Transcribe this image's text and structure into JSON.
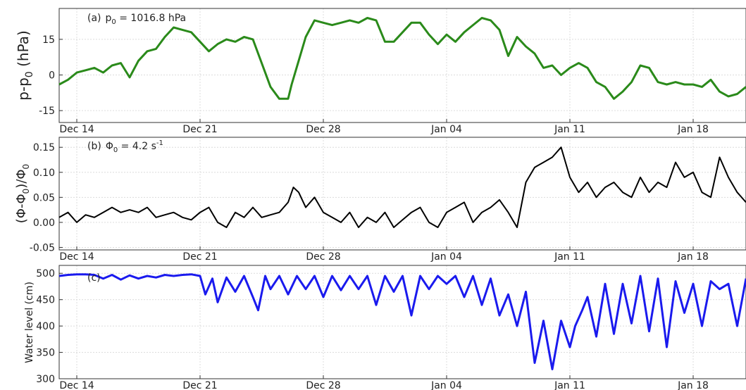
{
  "chart_data": [
    {
      "type": "line",
      "panel_label": "(a)",
      "annotation_text": "p",
      "annotation_sub": "0",
      "annotation_value": " = 1016.8 hPa",
      "ylabel": "p-p",
      "ylabel_sub": "0",
      "ylabel_unit": " (hPa)",
      "ylim": [
        -20,
        28
      ],
      "yticks": [
        -15,
        0,
        15
      ],
      "ytick_labels": [
        "-15",
        "0",
        "15"
      ],
      "xlim": [
        -1,
        38
      ],
      "xticks": [
        0,
        7,
        14,
        21,
        28,
        35
      ],
      "xtick_labels": [
        "Dec 14",
        "Dec 21",
        "Dec 28",
        "Jan 04",
        "Jan 11",
        "Jan 18"
      ],
      "grid": true,
      "color": "#2a8a1a",
      "x": [
        -1,
        -0.5,
        0,
        0.5,
        1,
        1.5,
        2,
        2.5,
        3,
        3.5,
        4,
        4.5,
        5,
        5.5,
        6,
        6.5,
        7,
        7.5,
        8,
        8.5,
        9,
        9.5,
        10,
        10.5,
        11,
        11.5,
        12,
        12.2,
        12.6,
        13,
        13.5,
        14,
        14.5,
        15,
        15.5,
        16,
        16.5,
        17,
        17.5,
        18,
        18.5,
        19,
        19.5,
        20,
        20.5,
        21,
        21.5,
        22,
        22.5,
        23,
        23.5,
        24,
        24.5,
        25,
        25.5,
        26,
        26.5,
        27,
        27.5,
        28,
        28.5,
        29,
        29.5,
        30,
        30.5,
        31,
        31.5,
        32,
        32.5,
        33,
        33.5,
        34,
        34.5,
        35,
        35.5,
        36,
        36.5,
        37,
        37.5,
        38
      ],
      "values": [
        -4,
        -2,
        1,
        2,
        3,
        1,
        4,
        5,
        -1,
        6,
        10,
        11,
        16,
        20,
        19,
        18,
        14,
        10,
        13,
        15,
        14,
        16,
        15,
        5,
        -5,
        -10,
        -10,
        -4,
        6,
        16,
        23,
        22,
        21,
        22,
        23,
        22,
        24,
        23,
        14,
        14,
        18,
        22,
        22,
        17,
        13,
        17,
        14,
        18,
        21,
        24,
        23,
        19,
        8,
        16,
        12,
        9,
        3,
        4,
        0,
        3,
        5,
        3,
        -3,
        -5,
        -10,
        -7,
        -3,
        4,
        3,
        -3,
        -4,
        -3,
        -4,
        -4,
        -5,
        -2,
        -7,
        -9,
        -8,
        -5
      ]
    },
    {
      "type": "line",
      "panel_label": "(b)",
      "annotation_text": "Φ",
      "annotation_sub": "0",
      "annotation_value": " = 4.2 s",
      "annotation_sup": "-1",
      "ylabel": "(Φ-Φ",
      "ylabel_sub": "0",
      "ylabel_mid": ")/Φ",
      "ylabel_sub2": "0",
      "ylim": [
        -0.055,
        0.17
      ],
      "yticks": [
        -0.05,
        0,
        0.05,
        0.1,
        0.15
      ],
      "ytick_labels": [
        "-0.05",
        "0.00",
        "0.05",
        "0.10",
        "0.15"
      ],
      "xlim": [
        -1,
        38
      ],
      "xticks": [
        0,
        7,
        14,
        21,
        28,
        35
      ],
      "xtick_labels": [
        "Dec 14",
        "Dec 21",
        "Dec 28",
        "Jan 04",
        "Jan 11",
        "Jan 18"
      ],
      "grid": true,
      "color": "#000000",
      "x": [
        -1,
        -0.5,
        0,
        0.5,
        1,
        1.5,
        2,
        2.5,
        3,
        3.5,
        4,
        4.5,
        5,
        5.5,
        6,
        6.5,
        7,
        7.5,
        8,
        8.5,
        9,
        9.5,
        10,
        10.5,
        11,
        11.5,
        12,
        12.3,
        12.6,
        13,
        13.5,
        14,
        14.5,
        15,
        15.5,
        16,
        16.5,
        17,
        17.5,
        18,
        18.5,
        19,
        19.5,
        20,
        20.5,
        21,
        21.5,
        22,
        22.5,
        23,
        23.5,
        24,
        24.5,
        25,
        25.5,
        26,
        26.5,
        27,
        27.5,
        28,
        28.5,
        29,
        29.5,
        30,
        30.5,
        31,
        31.5,
        32,
        32.5,
        33,
        33.5,
        34,
        34.5,
        35,
        35.5,
        36,
        36.5,
        37,
        37.5,
        38
      ],
      "values": [
        0.01,
        0.02,
        0.0,
        0.015,
        0.01,
        0.02,
        0.03,
        0.02,
        0.025,
        0.02,
        0.03,
        0.01,
        0.015,
        0.02,
        0.01,
        0.005,
        0.02,
        0.03,
        0.0,
        -0.01,
        0.02,
        0.01,
        0.03,
        0.01,
        0.015,
        0.02,
        0.04,
        0.07,
        0.06,
        0.03,
        0.05,
        0.02,
        0.01,
        0.0,
        0.02,
        -0.01,
        0.01,
        0.0,
        0.02,
        -0.01,
        0.005,
        0.02,
        0.03,
        0.0,
        -0.01,
        0.02,
        0.03,
        0.04,
        0.0,
        0.02,
        0.03,
        0.045,
        0.02,
        -0.01,
        0.08,
        0.11,
        0.12,
        0.13,
        0.15,
        0.09,
        0.06,
        0.08,
        0.05,
        0.07,
        0.08,
        0.06,
        0.05,
        0.09,
        0.06,
        0.08,
        0.07,
        0.12,
        0.09,
        0.1,
        0.06,
        0.05,
        0.13,
        0.09,
        0.06,
        0.04
      ]
    },
    {
      "type": "line",
      "panel_label": "(c)",
      "ylabel": "Water level (cm)",
      "ylim": [
        300,
        515
      ],
      "yticks": [
        300,
        350,
        400,
        450,
        500
      ],
      "ytick_labels": [
        "300",
        "350",
        "400",
        "450",
        "500"
      ],
      "xlim": [
        -1,
        38
      ],
      "xticks": [
        0,
        7,
        14,
        21,
        28,
        35
      ],
      "xtick_labels": [
        "Dec 14",
        "Dec 21",
        "Dec 28",
        "Jan 04",
        "Jan 11",
        "Jan 18"
      ],
      "grid": true,
      "color": "#1a1aee",
      "x": [
        -1,
        -0.5,
        0,
        0.5,
        1,
        1.5,
        2,
        2.5,
        3,
        3.5,
        4,
        4.5,
        5,
        5.5,
        6,
        6.5,
        7,
        7.3,
        7.7,
        8,
        8.5,
        9,
        9.5,
        10,
        10.3,
        10.7,
        11,
        11.5,
        12,
        12.5,
        13,
        13.5,
        14,
        14.5,
        15,
        15.5,
        16,
        16.5,
        17,
        17.5,
        18,
        18.5,
        19,
        19.5,
        20,
        20.5,
        21,
        21.5,
        22,
        22.5,
        23,
        23.5,
        24,
        24.5,
        25,
        25.5,
        26,
        26.5,
        27,
        27.5,
        28,
        28.3,
        28.7,
        29,
        29.5,
        30,
        30.5,
        31,
        31.5,
        32,
        32.5,
        33,
        33.5,
        34,
        34.5,
        35,
        35.5,
        36,
        36.5,
        37,
        37.5,
        38
      ],
      "values": [
        495,
        497,
        498,
        498,
        497,
        490,
        497,
        488,
        496,
        490,
        495,
        492,
        497,
        495,
        497,
        498,
        495,
        460,
        490,
        445,
        492,
        465,
        495,
        455,
        430,
        495,
        470,
        495,
        460,
        495,
        470,
        495,
        455,
        495,
        468,
        495,
        470,
        495,
        440,
        495,
        465,
        495,
        420,
        495,
        470,
        495,
        480,
        495,
        455,
        495,
        440,
        490,
        420,
        460,
        400,
        465,
        330,
        410,
        318,
        410,
        360,
        400,
        430,
        455,
        380,
        480,
        385,
        480,
        405,
        495,
        390,
        490,
        360,
        485,
        425,
        480,
        400,
        485,
        470,
        480,
        400,
        490
      ]
    }
  ]
}
